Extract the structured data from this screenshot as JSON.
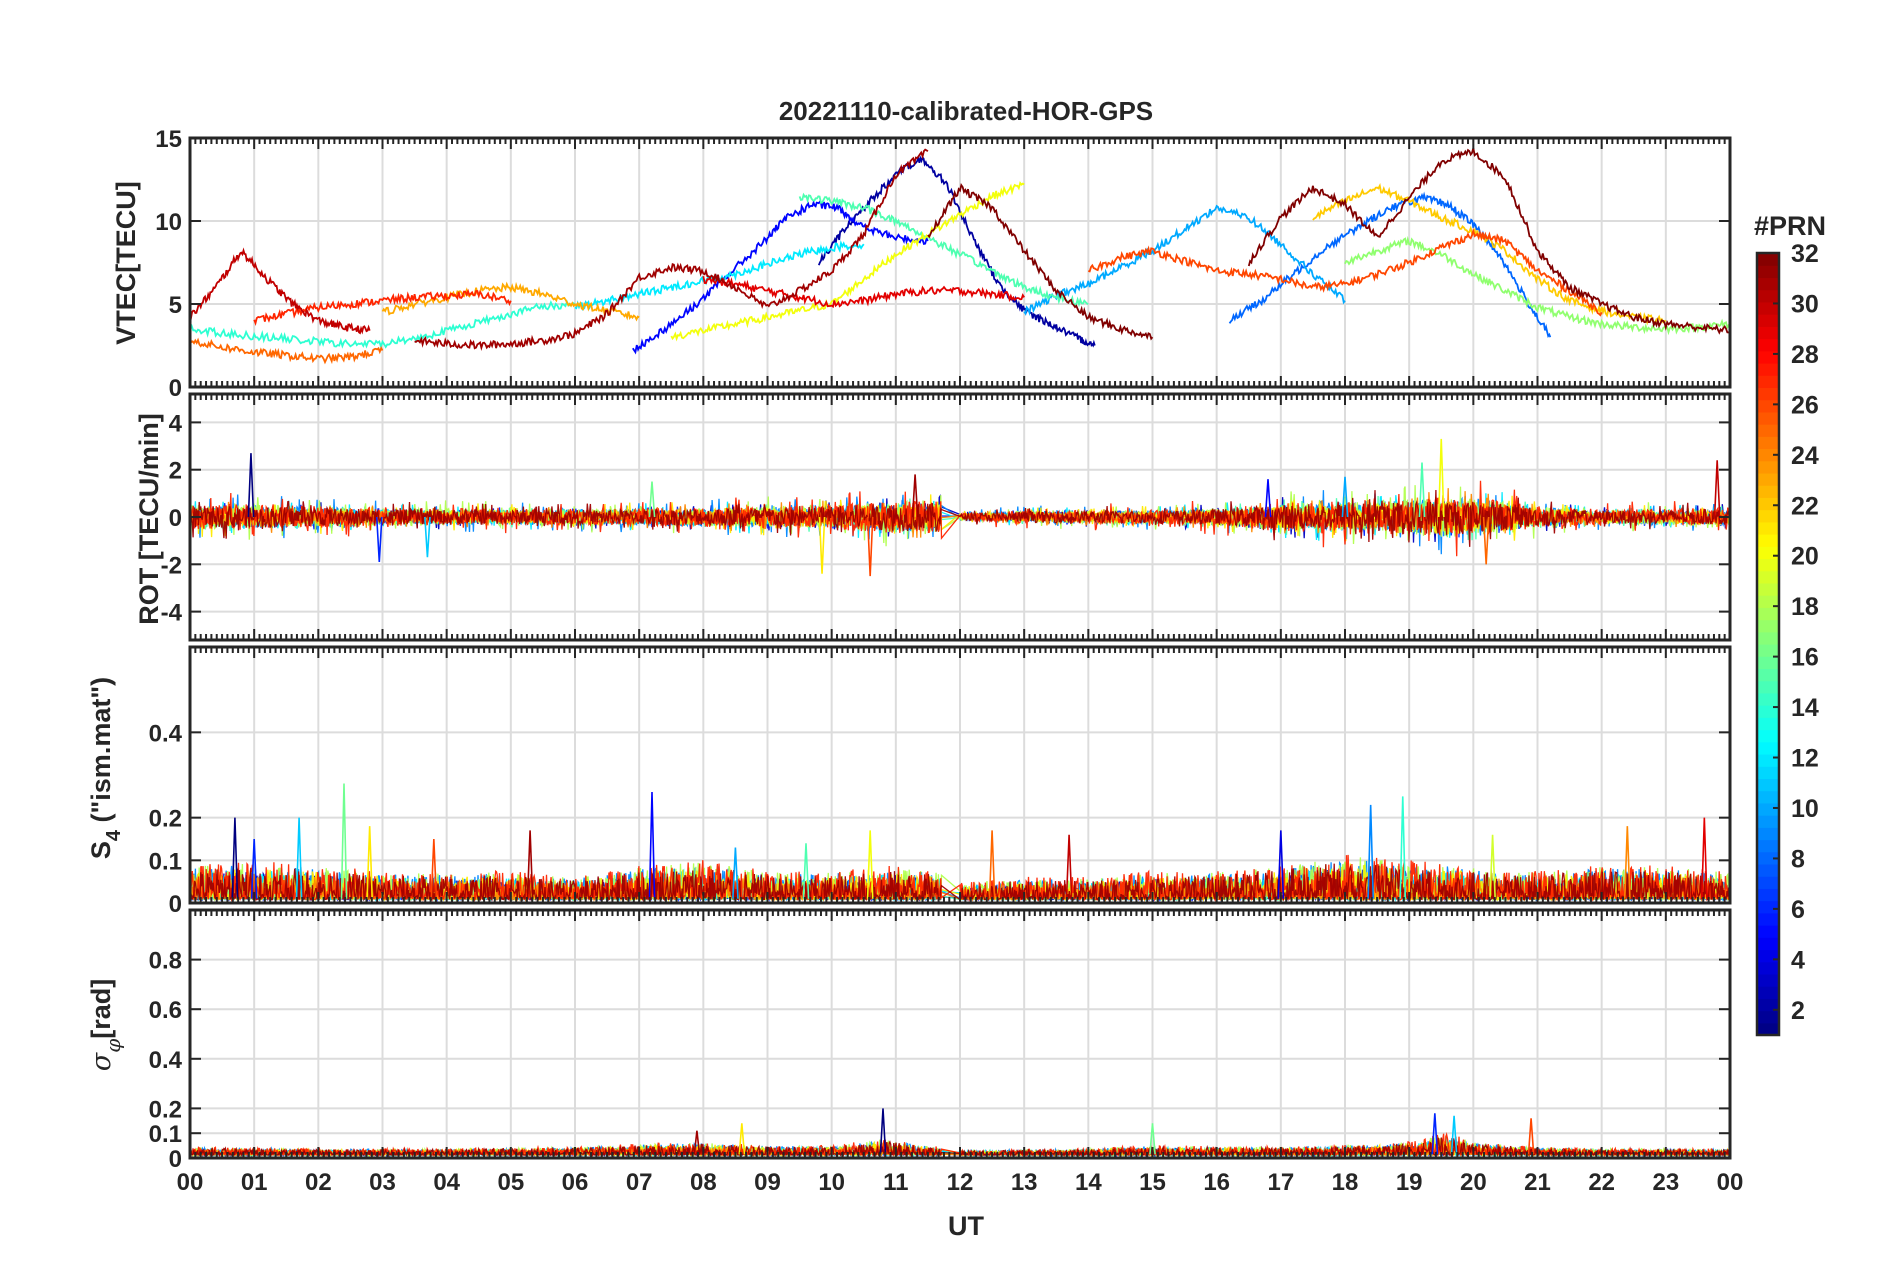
{
  "chart_data": {
    "type": "line",
    "title": "20221110-calibrated-HOR-GPS",
    "xlabel": "UT",
    "xlim": [
      0,
      24
    ],
    "xticks": [
      0,
      1,
      2,
      3,
      4,
      5,
      6,
      7,
      8,
      9,
      10,
      11,
      12,
      13,
      14,
      15,
      16,
      17,
      18,
      19,
      20,
      21,
      22,
      23,
      24
    ],
    "xtick_labels": [
      "00",
      "01",
      "02",
      "03",
      "04",
      "05",
      "06",
      "07",
      "08",
      "09",
      "10",
      "11",
      "12",
      "13",
      "14",
      "15",
      "16",
      "17",
      "18",
      "19",
      "20",
      "21",
      "22",
      "23",
      "00"
    ],
    "grid": true,
    "colorbar": {
      "title": "#PRN",
      "colormap": "jet",
      "range": [
        1,
        32
      ],
      "ticks": [
        2,
        4,
        6,
        8,
        10,
        12,
        14,
        16,
        18,
        20,
        22,
        24,
        26,
        28,
        30,
        32
      ],
      "tick_labels": [
        "2",
        "4",
        "6",
        "8",
        "10",
        "12",
        "14",
        "16",
        "18",
        "20",
        "22",
        "24",
        "26",
        "28",
        "30",
        "32"
      ]
    },
    "panels": [
      {
        "name": "vtec",
        "ylabel": "VTEC[TECU]",
        "ylim": [
          0,
          15
        ],
        "yticks": [
          0,
          5,
          10,
          15
        ],
        "ytick_labels": [
          "0",
          "5",
          "10",
          "15"
        ],
        "kind": "vtec",
        "series": [
          {
            "prn": 2,
            "x": [
              9.8,
              10.2,
              10.6,
              11.0,
              11.4,
              11.8,
              12.2,
              12.6,
              13.0,
              13.4,
              13.8,
              14.1
            ],
            "y": [
              7.5,
              9.5,
              11.2,
              12.8,
              13.8,
              12.2,
              9.0,
              6.2,
              4.6,
              3.8,
              3.0,
              2.5
            ]
          },
          {
            "prn": 5,
            "x": [
              6.9,
              7.4,
              7.9,
              8.4,
              8.9,
              9.3,
              9.7,
              10.1,
              10.5,
              11.0,
              11.5
            ],
            "y": [
              2.2,
              3.5,
              5.0,
              6.8,
              8.6,
              10.2,
              11.0,
              10.8,
              9.6,
              9.0,
              8.8
            ]
          },
          {
            "prn": 8,
            "x": [
              16.2,
              16.7,
              17.2,
              17.7,
              18.2,
              18.7,
              19.2,
              19.6,
              20.0,
              20.4,
              20.8,
              21.2
            ],
            "y": [
              4.0,
              5.2,
              6.8,
              8.4,
              9.6,
              10.8,
              11.4,
              11.0,
              9.8,
              8.0,
              5.4,
              3.0
            ]
          },
          {
            "prn": 10,
            "x": [
              13.0,
              13.5,
              14.0,
              14.5,
              15.0,
              15.5,
              16.0,
              16.5,
              17.0,
              17.5,
              18.0
            ],
            "y": [
              4.5,
              5.5,
              6.2,
              7.2,
              8.2,
              9.5,
              10.8,
              10.2,
              8.6,
              6.8,
              5.2
            ]
          },
          {
            "prn": 12,
            "x": [
              6.0,
              6.5,
              7.0,
              7.5,
              8.0,
              8.5,
              9.0,
              9.5,
              10.0,
              10.5
            ],
            "y": [
              4.8,
              5.2,
              5.6,
              6.0,
              6.4,
              6.8,
              7.4,
              8.0,
              8.4,
              8.6
            ]
          },
          {
            "prn": 14,
            "x": [
              0.0,
              0.6,
              1.2,
              1.8,
              2.4,
              3.0,
              3.6,
              4.2,
              4.8,
              5.4,
              6.0
            ],
            "y": [
              3.5,
              3.2,
              3.0,
              2.8,
              2.6,
              2.6,
              3.0,
              3.6,
              4.2,
              4.8,
              5.0
            ]
          },
          {
            "prn": 15,
            "x": [
              9.5,
              10.0,
              10.5,
              11.0,
              11.5,
              12.0,
              12.5,
              13.0,
              13.5,
              14.0
            ],
            "y": [
              11.5,
              11.2,
              10.8,
              10.0,
              9.0,
              8.0,
              7.0,
              6.0,
              5.4,
              5.0
            ]
          },
          {
            "prn": 17,
            "x": [
              18.0,
              18.5,
              19.0,
              19.5,
              20.0,
              20.5,
              21.0,
              21.5,
              22.0,
              22.5,
              23.0,
              23.5,
              24.0
            ],
            "y": [
              7.5,
              8.2,
              8.8,
              8.0,
              6.8,
              5.8,
              4.8,
              4.2,
              3.8,
              3.6,
              3.5,
              3.6,
              3.8
            ]
          },
          {
            "prn": 20,
            "x": [
              7.5,
              8.0,
              8.5,
              9.0,
              9.5,
              10.0,
              10.5,
              11.0,
              11.5,
              12.0,
              12.5,
              13.0
            ],
            "y": [
              3.0,
              3.4,
              3.8,
              4.2,
              4.6,
              5.0,
              6.5,
              8.0,
              9.2,
              10.4,
              11.5,
              12.2
            ]
          },
          {
            "prn": 22,
            "x": [
              17.5,
              18.0,
              18.5,
              19.0,
              19.5,
              20.0,
              20.5,
              21.0,
              21.5,
              22.0,
              22.5,
              23.0
            ],
            "y": [
              10.2,
              11.2,
              12.0,
              11.2,
              10.2,
              9.4,
              8.2,
              6.5,
              5.2,
              4.6,
              4.2,
              4.0
            ]
          },
          {
            "prn": 23,
            "x": [
              3.0,
              3.5,
              4.0,
              4.5,
              5.0,
              5.5,
              6.0,
              6.5,
              7.0
            ],
            "y": [
              4.5,
              5.0,
              5.4,
              5.8,
              6.0,
              5.6,
              5.0,
              4.6,
              4.2
            ]
          },
          {
            "prn": 25,
            "x": [
              0.0,
              0.5,
              1.0,
              1.5,
              2.0,
              2.5,
              3.0
            ],
            "y": [
              2.8,
              2.4,
              2.1,
              1.9,
              1.7,
              1.8,
              2.2
            ]
          },
          {
            "prn": 26,
            "x": [
              14.0,
              14.5,
              15.0,
              15.5,
              16.0,
              16.5,
              17.0,
              17.5,
              18.0,
              18.5,
              19.0,
              19.5,
              20.0,
              20.5,
              21.0,
              21.5,
              22.0
            ],
            "y": [
              7.0,
              7.8,
              8.2,
              7.6,
              7.0,
              6.8,
              6.5,
              6.0,
              6.2,
              6.8,
              7.5,
              8.4,
              9.2,
              8.8,
              7.0,
              5.8,
              4.5
            ]
          },
          {
            "prn": 27,
            "x": [
              1.0,
              1.5,
              2.0,
              2.5,
              3.0,
              3.5,
              4.0,
              4.5,
              5.0
            ],
            "y": [
              4.0,
              4.4,
              4.8,
              5.0,
              5.2,
              5.4,
              5.5,
              5.6,
              5.2
            ]
          },
          {
            "prn": 29,
            "x": [
              8.0,
              8.5,
              9.0,
              9.5,
              10.0,
              10.5,
              11.0,
              11.5,
              12.0,
              12.5,
              13.0
            ],
            "y": [
              6.5,
              6.2,
              5.8,
              5.4,
              5.0,
              5.2,
              5.6,
              5.8,
              5.8,
              5.6,
              5.4
            ]
          },
          {
            "prn": 30,
            "x": [
              0.0,
              0.4,
              0.8,
              1.2,
              1.6,
              2.0,
              2.4,
              2.8
            ],
            "y": [
              4.2,
              6.0,
              8.2,
              6.5,
              5.0,
              4.0,
              3.6,
              3.4
            ]
          },
          {
            "prn": 31,
            "x": [
              3.5,
              4.0,
              4.5,
              5.0,
              5.5,
              6.0,
              6.5,
              7.0,
              7.5,
              8.0,
              8.5,
              9.0,
              9.5,
              10.0,
              10.5,
              11.0,
              11.5
            ],
            "y": [
              2.8,
              2.6,
              2.5,
              2.6,
              2.8,
              3.2,
              4.4,
              6.6,
              7.2,
              7.0,
              6.0,
              4.8,
              5.8,
              7.0,
              9.2,
              12.8,
              14.2
            ]
          },
          {
            "prn": 32,
            "x": [
              11.5,
              12.0,
              12.5,
              13.0,
              13.5,
              14.0,
              14.5,
              15.0
            ],
            "y": [
              9.0,
              12.0,
              10.8,
              8.2,
              5.8,
              4.2,
              3.5,
              3.0
            ]
          },
          {
            "prn": 32,
            "x": [
              16.5,
              17.0,
              17.5,
              18.0,
              18.5,
              19.0,
              19.5,
              20.0,
              20.5,
              21.0,
              21.5,
              22.0,
              22.5,
              23.0,
              23.5,
              24.0
            ],
            "y": [
              7.5,
              10.2,
              12.0,
              11.0,
              9.0,
              11.4,
              13.6,
              14.2,
              12.6,
              8.2,
              6.0,
              5.0,
              4.2,
              3.8,
              3.6,
              3.4
            ]
          }
        ]
      },
      {
        "name": "rot",
        "ylabel": "ROT [TECU/min]",
        "ylim": [
          -5.2,
          5.2
        ],
        "yticks": [
          -4,
          -2,
          0,
          2,
          4
        ],
        "ytick_labels": [
          "-4",
          "-2",
          "0",
          "2",
          "4"
        ],
        "kind": "noise",
        "noise_center": 0,
        "envelope": {
          "x": [
            0,
            1,
            3,
            6,
            8,
            10,
            11,
            11.7,
            12.0,
            13,
            15,
            16,
            17,
            18,
            19,
            19.6,
            20.5,
            21,
            22,
            23,
            24
          ],
          "amp": [
            0.7,
            0.7,
            0.5,
            0.45,
            0.55,
            0.7,
            0.9,
            0.9,
            0.2,
            0.35,
            0.4,
            0.5,
            0.8,
            0.9,
            1.0,
            1.2,
            0.9,
            0.6,
            0.4,
            0.45,
            0.5
          ]
        },
        "spikes": [
          {
            "x": 0.95,
            "y": 2.7
          },
          {
            "x": 2.95,
            "y": -1.9
          },
          {
            "x": 3.7,
            "y": -1.7
          },
          {
            "x": 7.2,
            "y": 1.5
          },
          {
            "x": 9.85,
            "y": -2.4
          },
          {
            "x": 10.6,
            "y": -2.5
          },
          {
            "x": 11.3,
            "y": 1.8
          },
          {
            "x": 16.8,
            "y": 1.6
          },
          {
            "x": 18.0,
            "y": 1.7
          },
          {
            "x": 19.2,
            "y": 2.3
          },
          {
            "x": 19.5,
            "y": 3.3
          },
          {
            "x": 20.2,
            "y": -2.0
          },
          {
            "x": 23.8,
            "y": 2.4
          }
        ]
      },
      {
        "name": "s4",
        "ylabel_main": "S",
        "ylabel_sub": "4",
        "ylabel_tail": " (\"ism.mat\")",
        "ylim": [
          0,
          0.6
        ],
        "yticks": [
          0,
          0.1,
          0.2,
          0.4
        ],
        "ytick_labels": [
          "0",
          "0.1",
          "0.2",
          "0.4"
        ],
        "kind": "positive",
        "noise_center": 0.02,
        "envelope": {
          "x": [
            0,
            1,
            2,
            3,
            4,
            5,
            6,
            7,
            8,
            9,
            10,
            11,
            11.7,
            12,
            13,
            14,
            15,
            16,
            17,
            18,
            19,
            20,
            21,
            22,
            23,
            24
          ],
          "amp": [
            0.06,
            0.07,
            0.06,
            0.05,
            0.05,
            0.05,
            0.04,
            0.06,
            0.07,
            0.05,
            0.05,
            0.06,
            0.05,
            0.03,
            0.04,
            0.04,
            0.05,
            0.05,
            0.06,
            0.08,
            0.07,
            0.06,
            0.05,
            0.06,
            0.06,
            0.05
          ]
        },
        "spikes": [
          {
            "x": 0.7,
            "y": 0.2
          },
          {
            "x": 1.0,
            "y": 0.15
          },
          {
            "x": 1.7,
            "y": 0.2
          },
          {
            "x": 2.4,
            "y": 0.28
          },
          {
            "x": 2.8,
            "y": 0.18
          },
          {
            "x": 3.8,
            "y": 0.15
          },
          {
            "x": 5.3,
            "y": 0.17
          },
          {
            "x": 7.2,
            "y": 0.26
          },
          {
            "x": 8.5,
            "y": 0.13
          },
          {
            "x": 9.6,
            "y": 0.14
          },
          {
            "x": 10.6,
            "y": 0.17
          },
          {
            "x": 12.5,
            "y": 0.17
          },
          {
            "x": 13.7,
            "y": 0.16
          },
          {
            "x": 17.0,
            "y": 0.17
          },
          {
            "x": 18.4,
            "y": 0.23
          },
          {
            "x": 18.9,
            "y": 0.25
          },
          {
            "x": 20.3,
            "y": 0.16
          },
          {
            "x": 22.4,
            "y": 0.18
          },
          {
            "x": 23.6,
            "y": 0.2
          }
        ]
      },
      {
        "name": "sigma",
        "ylabel_main": "σ",
        "ylabel_sub": "φ",
        "ylabel_tail": "[rad]",
        "ylim": [
          0,
          1
        ],
        "yticks": [
          0,
          0.1,
          0.2,
          0.4,
          0.6,
          0.8
        ],
        "ytick_labels": [
          "0",
          "0.1",
          "0.2",
          "0.4",
          "0.6",
          "0.8"
        ],
        "kind": "positive",
        "noise_center": 0.03,
        "envelope": {
          "x": [
            0,
            2,
            4,
            6,
            7,
            8,
            9,
            10,
            10.8,
            11.5,
            12,
            14,
            15,
            17,
            19,
            19.6,
            20,
            21,
            22,
            24
          ],
          "amp": [
            0.025,
            0.02,
            0.02,
            0.025,
            0.035,
            0.04,
            0.03,
            0.03,
            0.05,
            0.03,
            0.015,
            0.02,
            0.03,
            0.025,
            0.04,
            0.07,
            0.04,
            0.025,
            0.02,
            0.02
          ]
        },
        "spikes": [
          {
            "x": 10.8,
            "y": 0.2
          },
          {
            "x": 19.4,
            "y": 0.18
          },
          {
            "x": 19.7,
            "y": 0.17
          },
          {
            "x": 15.0,
            "y": 0.14
          },
          {
            "x": 8.6,
            "y": 0.14
          },
          {
            "x": 20.9,
            "y": 0.16
          },
          {
            "x": 7.9,
            "y": 0.11
          }
        ]
      }
    ]
  }
}
